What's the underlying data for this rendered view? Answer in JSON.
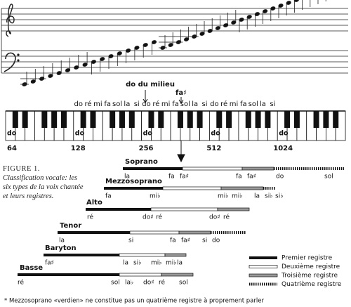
{
  "notation": {
    "middle_c_label": "do du milieu",
    "f_sharp_label": "fa♯",
    "note_names": [
      "do",
      "ré",
      "mi",
      "fa",
      "sol",
      "la",
      "si",
      "do",
      "ré",
      "mi",
      "fa",
      "sol",
      "la",
      "si",
      "do",
      "ré",
      "mi",
      "fa",
      "sol",
      "la",
      "si"
    ],
    "key_labels": [
      "do",
      "do",
      "do",
      "do",
      "do"
    ],
    "frequencies": [
      64,
      128,
      256,
      512,
      1024
    ]
  },
  "figure": {
    "label": "FIGURE 1.",
    "caption": "Classification vocale: les six types de la voix chantée et leurs registres."
  },
  "voices": [
    {
      "name": "Soprano",
      "notes": [
        "la",
        "fa",
        "fa♯",
        "fa",
        "fa♯",
        "do",
        "sol"
      ]
    },
    {
      "name": "Mezzosoprano",
      "notes": [
        "fa",
        "mi♭",
        "mi♭",
        "mi♭",
        "la",
        "si♭",
        "si♭"
      ]
    },
    {
      "name": "Alto",
      "notes": [
        "ré",
        "do♯",
        "ré",
        "do♯",
        "ré"
      ]
    },
    {
      "name": "Tenor",
      "notes": [
        "la",
        "si",
        "fa",
        "fa♯",
        "si",
        "do"
      ]
    },
    {
      "name": "Baryton",
      "notes": [
        "fa♯",
        "la",
        "si♭",
        "mi♭",
        "mi♭",
        "la"
      ]
    },
    {
      "name": "Basse",
      "notes": [
        "ré",
        "sol",
        "la♭",
        "do♯",
        "ré",
        "sol"
      ]
    }
  ],
  "legend": [
    "Premier registre",
    "Deuxième registre",
    "Troisième registre",
    "Quatrième registre"
  ],
  "footnote": "* Mezzosoprano «verdien» ne constitue pas un quatrième registre à proprement parler"
}
